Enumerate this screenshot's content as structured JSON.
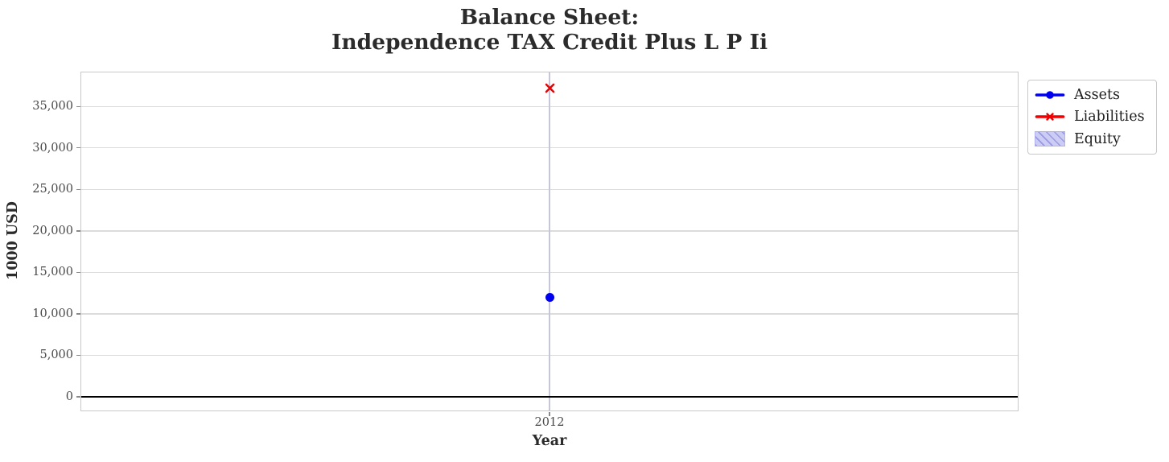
{
  "chart_data": {
    "type": "line",
    "title": "Balance Sheet:\nIndependence TAX Credit Plus L P Ii",
    "title_lines": [
      "Balance Sheet:",
      "Independence TAX Credit Plus L P Ii"
    ],
    "xlabel": "Year",
    "ylabel": "1000 USD",
    "categories": [
      "2012"
    ],
    "x_tick_labels": [
      "2012"
    ],
    "yticks": [
      0,
      5000,
      10000,
      15000,
      20000,
      25000,
      30000,
      35000
    ],
    "ytick_labels": [
      "0",
      "5,000",
      "10,000",
      "15,000",
      "20,000",
      "25,000",
      "30,000",
      "35,000"
    ],
    "ylim": [
      -1650,
      39100
    ],
    "grid": true,
    "zero_line": true,
    "legend_position": "upper-right-outside",
    "series": [
      {
        "name": "Assets",
        "type": "line",
        "marker": "circle",
        "color": "#0000f0",
        "values": [
          12000
        ]
      },
      {
        "name": "Liabilities",
        "type": "line",
        "marker": "x",
        "color": "#f00000",
        "values": [
          37200
        ]
      },
      {
        "name": "Equity",
        "type": "area",
        "hatch": "///",
        "fill_color": "#ccccf5",
        "hatch_color": "#9a9ae0",
        "edge_color": "#b2b2ee",
        "values": []
      }
    ],
    "axis_colors": {
      "h_grid": "#dcdcdc",
      "x_grid": "#c6c6da",
      "border": "#c9c9c9",
      "zero_line": "#000000",
      "tick_label": "#4a4a4a",
      "text": "#2b2b2b"
    }
  }
}
